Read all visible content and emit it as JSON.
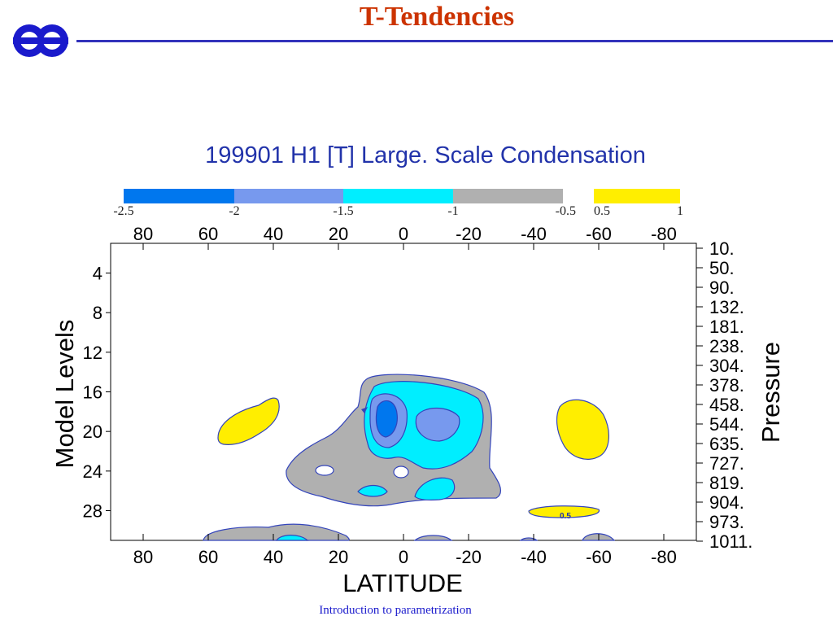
{
  "slide": {
    "title": "T-Tendencies",
    "footer": "Introduction to parametrization"
  },
  "colors": {
    "title": "#cc3300",
    "rule": "#3333bb",
    "footer": "#1a1acc"
  },
  "chart_data": {
    "type": "heatmap",
    "title": "199901 H1  [T] Large. Scale Condensation",
    "xlabel": "LATITUDE",
    "ylabel_left": "Model Levels",
    "ylabel_right": "Pressure",
    "x_tick_labels": [
      "80",
      "60",
      "40",
      "20",
      "0",
      "-20",
      "-40",
      "-60",
      "-80"
    ],
    "x_ticks": [
      80,
      60,
      40,
      20,
      0,
      -20,
      -40,
      -60,
      -80
    ],
    "xlim": [
      90,
      -90
    ],
    "y_tick_labels": [
      "4",
      "8",
      "12",
      "16",
      "20",
      "24",
      "28"
    ],
    "y_ticks": [
      4,
      8,
      12,
      16,
      20,
      24,
      28
    ],
    "ylim": [
      1,
      31
    ],
    "pressure_tick_labels": [
      "10.",
      "50.",
      "90.",
      "132.",
      "181.",
      "238.",
      "304.",
      "378.",
      "458.",
      "544.",
      "635.",
      "727.",
      "819.",
      "904.",
      "973.",
      "1011."
    ],
    "colorbar": {
      "bins": [
        {
          "from": -2.5,
          "to": -2,
          "color": "#0077ee"
        },
        {
          "from": -2,
          "to": -1.5,
          "color": "#7799ee"
        },
        {
          "from": -1.5,
          "to": -1,
          "color": "#00eeff"
        },
        {
          "from": -1,
          "to": -0.5,
          "color": "#b0b0b0"
        },
        {
          "from": 0.5,
          "to": 1,
          "color": "#ffee00"
        }
      ],
      "tick_labels": [
        "-2.5",
        "-2",
        "-1.5",
        "-1",
        "-0.5",
        "0.5",
        "1"
      ]
    },
    "contour_labels": [
      "0.5"
    ],
    "regions": [
      {
        "level": "-1 to -0.5",
        "color": "#b0b0b0",
        "center_lat": -5,
        "center_level": 21
      },
      {
        "level": "-1.5 to -1",
        "color": "#00eeff",
        "center_lat": -5,
        "center_level": 19
      },
      {
        "level": "-2 to -1.5",
        "color": "#7799ee",
        "center_lat": -6,
        "center_level": 19
      },
      {
        "level": "-2.5 to -2",
        "color": "#0077ee",
        "center_lat": 6,
        "center_level": 18
      },
      {
        "level": "0.5 to 1",
        "color": "#ffee00",
        "center_lat": 45,
        "center_level": 19
      },
      {
        "level": "0.5 to 1",
        "color": "#ffee00",
        "center_lat": -55,
        "center_level": 19
      },
      {
        "level": "0.5 to 1",
        "color": "#ffee00",
        "center_lat": -48,
        "center_level": 28
      }
    ]
  }
}
